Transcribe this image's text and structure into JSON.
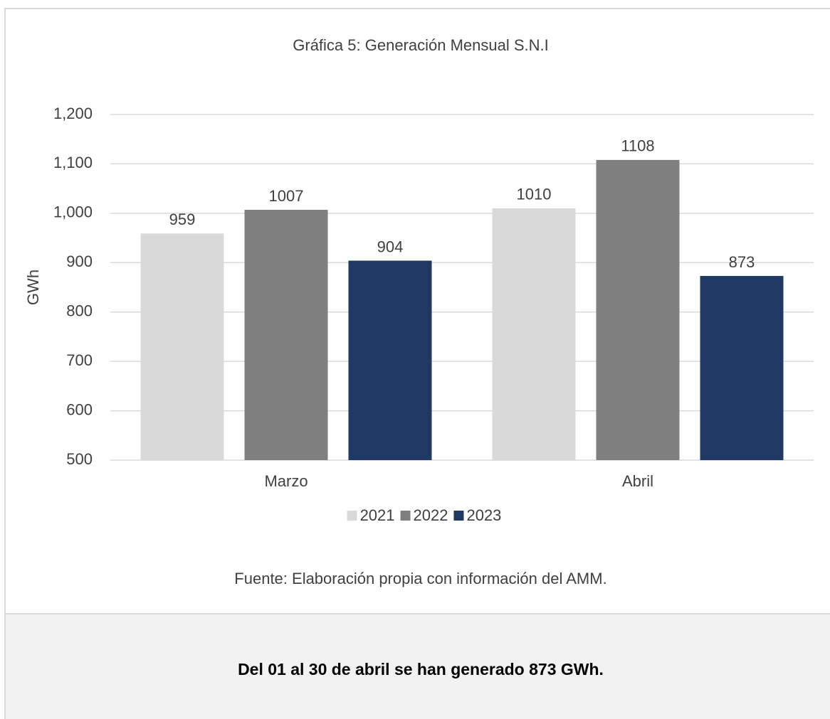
{
  "chart_data": {
    "type": "bar",
    "title": "Gráfica 5:  Generación Mensual S.N.I",
    "y_label": "GWh",
    "categories": [
      "Marzo",
      "Abril"
    ],
    "series": [
      {
        "name": "2021",
        "color": "#d9d9d9",
        "values": [
          959,
          1010
        ]
      },
      {
        "name": "2022",
        "color": "#7f7f7f",
        "values": [
          1007,
          1108
        ]
      },
      {
        "name": "2023",
        "color": "#203864",
        "values": [
          904,
          873
        ]
      }
    ],
    "ylim": [
      500,
      1200
    ],
    "yticks": [
      500,
      600,
      700,
      800,
      900,
      {
        "value": 1000,
        "label": "1,000"
      },
      {
        "value": 1100,
        "label": "1,100"
      },
      {
        "value": 1200,
        "label": "1,200"
      }
    ],
    "grid": true,
    "legend": "bottom",
    "source": "Fuente: Elaboración propia con información del AMM."
  },
  "footer": {
    "note": "Del 01 al 30 de abril se han generado 873 GWh."
  }
}
